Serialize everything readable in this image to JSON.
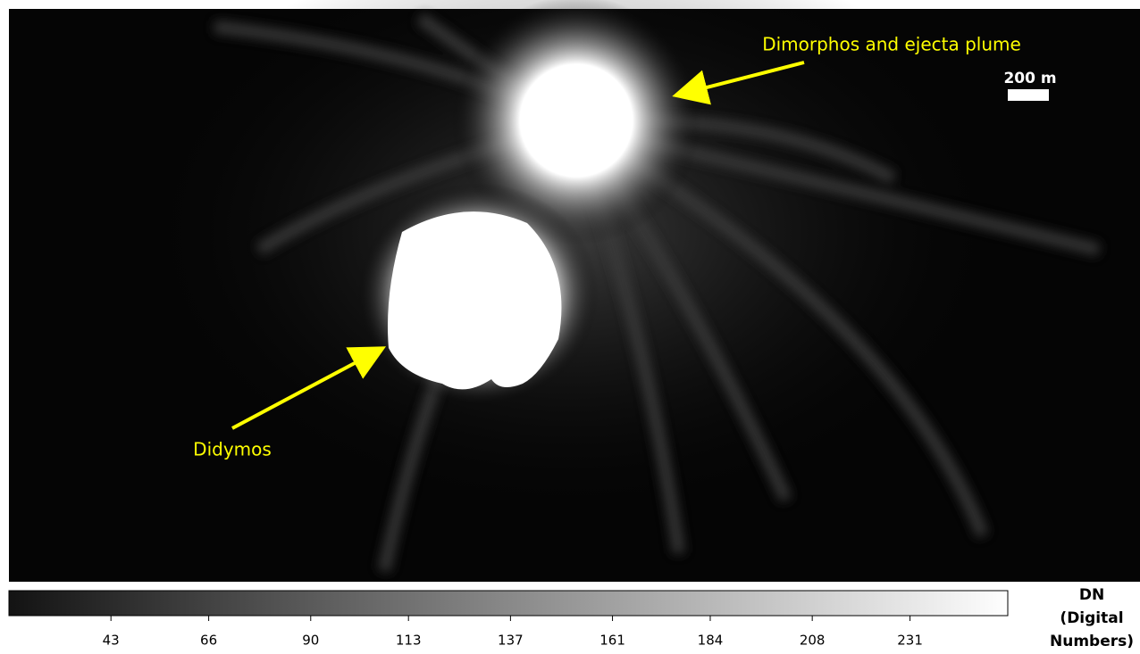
{
  "image": {
    "annotations": [
      {
        "label": "Dimorphos and ejecta plume"
      },
      {
        "label": "Didymos"
      }
    ],
    "scale_bar": {
      "label": "200 m"
    }
  },
  "colorbar": {
    "label_lines": [
      "DN",
      "(Digital",
      "Numbers)"
    ],
    "lim": [
      19,
      254
    ],
    "ticks": [
      43,
      66,
      90,
      113,
      137,
      161,
      184,
      208,
      231
    ]
  }
}
